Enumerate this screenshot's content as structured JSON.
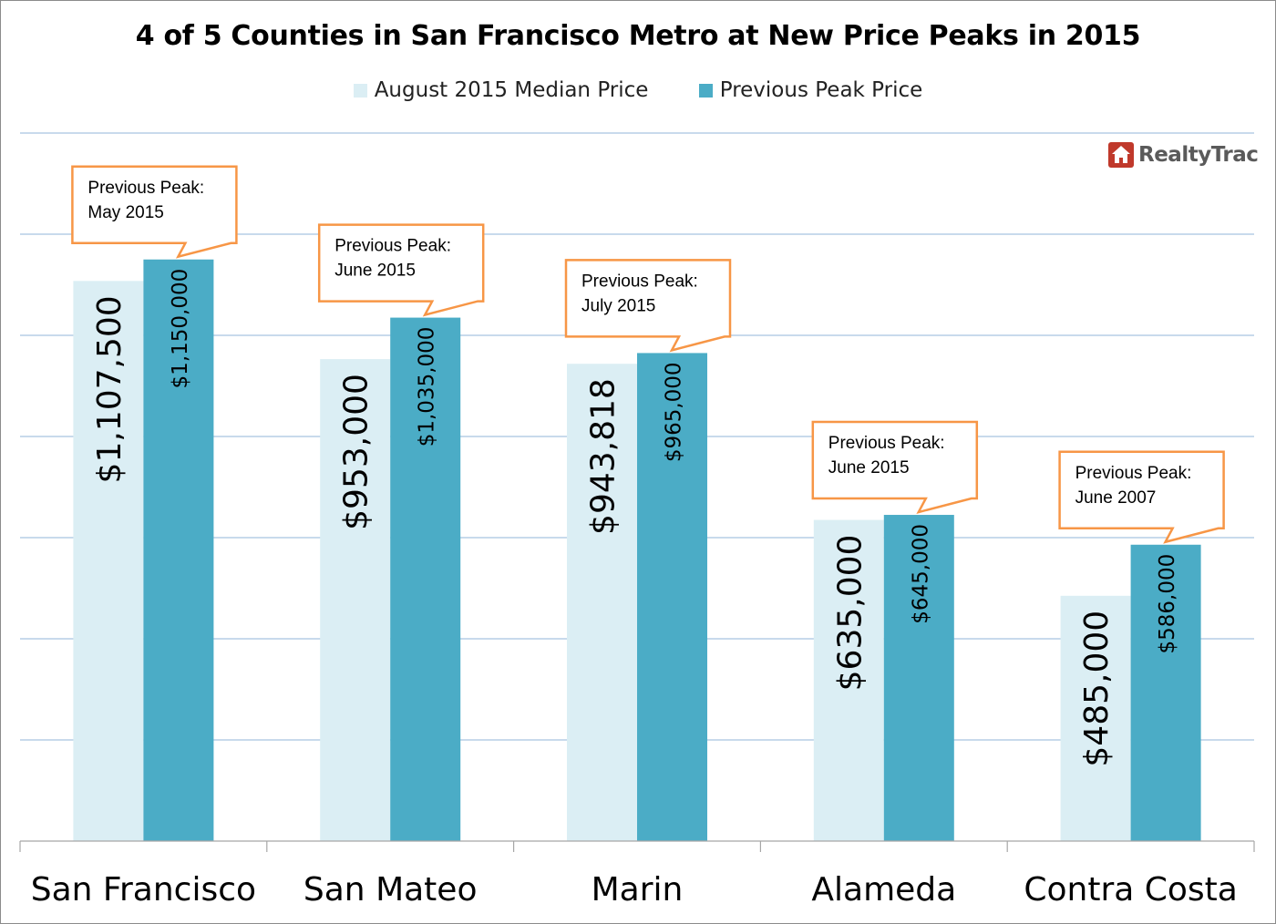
{
  "chart_data": {
    "type": "bar",
    "title": "4 of 5 Counties in San Francisco Metro at New Price Peaks in 2015",
    "categories": [
      "San Francisco",
      "San Mateo",
      "Marin",
      "Alameda",
      "Contra Costa"
    ],
    "series": [
      {
        "name": "August 2015 Median Price",
        "values": [
          1107500,
          953000,
          943818,
          635000,
          485000
        ],
        "labels": [
          "$1,107,500",
          "$953,000",
          "$943,818",
          "$635,000",
          "$485,000"
        ],
        "color": "#dbeef4"
      },
      {
        "name": "Previous Peak Price",
        "values": [
          1150000,
          1035000,
          965000,
          645000,
          586000
        ],
        "labels": [
          "$1,150,000",
          "$1,035,000",
          "$965,000",
          "$645,000",
          "$586,000"
        ],
        "color": "#4bacc6"
      }
    ],
    "annotations": [
      {
        "line1": "Previous Peak:",
        "line2": "May 2015"
      },
      {
        "line1": "Previous Peak:",
        "line2": "June 2015"
      },
      {
        "line1": "Previous Peak:",
        "line2": "July 2015"
      },
      {
        "line1": "Previous Peak:",
        "line2": "June 2015"
      },
      {
        "line1": "Previous Peak:",
        "line2": "June 2007"
      }
    ],
    "ylim": [
      0,
      1400000
    ],
    "gridlines": true,
    "legend_position": "top",
    "xlabel": "",
    "ylabel": ""
  },
  "branding": {
    "logo_text": "RealtyTrac",
    "logo_icon": "house-icon",
    "logo_color": "#c0392b"
  },
  "colors": {
    "gridline": "#a8c4e0",
    "callout_border": "#f79646",
    "axis": "#a6a6a6"
  }
}
